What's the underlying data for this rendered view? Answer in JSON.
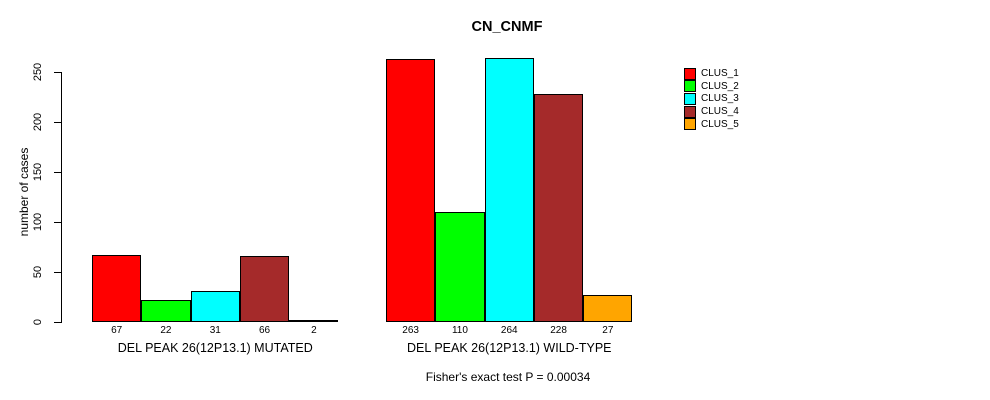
{
  "chart_data": {
    "type": "bar",
    "title": "CN_CNMF",
    "ylabel": "number of cases",
    "xlabel": "",
    "ylim": [
      0,
      250
    ],
    "yticks": [
      0,
      50,
      100,
      150,
      200,
      250
    ],
    "grid": false,
    "legend_position": "right",
    "categories": [
      "DEL PEAK 26(12P13.1) MUTATED",
      "DEL PEAK 26(12P13.1) WILD-TYPE"
    ],
    "series": [
      {
        "name": "CLUS_1",
        "color": "#FF0000",
        "values": [
          67,
          263
        ]
      },
      {
        "name": "CLUS_2",
        "color": "#00FF00",
        "values": [
          22,
          110
        ]
      },
      {
        "name": "CLUS_3",
        "color": "#00FFFF",
        "values": [
          31,
          264
        ]
      },
      {
        "name": "CLUS_4",
        "color": "#A52A2A",
        "values": [
          66,
          228
        ]
      },
      {
        "name": "CLUS_5",
        "color": "#FFA500",
        "values": [
          2,
          27
        ]
      }
    ],
    "bar_value_labels_shown": true,
    "annotation": "Fisher's exact test P = 0.00034",
    "axis_color": "#000000",
    "background_color": "#FFFFFF"
  }
}
